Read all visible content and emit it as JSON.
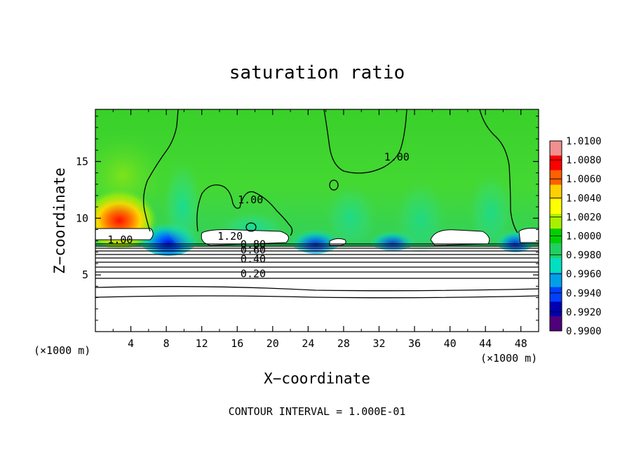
{
  "chart_data": {
    "type": "heatmap",
    "title": "saturation ratio",
    "xlabel": "X−coordinate",
    "ylabel": "Z−coordinate",
    "x_unit": "(×1000 m)",
    "x_unit_right": "(×1000 m)",
    "xlim": [
      0,
      50
    ],
    "ylim": [
      0,
      19.6
    ],
    "xticks": [
      4,
      8,
      12,
      16,
      20,
      24,
      28,
      32,
      36,
      40,
      44,
      48
    ],
    "xtick_labels": [
      "4",
      "8",
      "12",
      "16",
      "20",
      "24",
      "28",
      "32",
      "36",
      "40",
      "44",
      "48"
    ],
    "yticks": [
      5,
      10,
      15
    ],
    "ytick_labels": [
      "5",
      "10",
      "15"
    ],
    "colorbar": {
      "min": 0.99,
      "max": 1.01,
      "labels": [
        "1.0100",
        "1.0080",
        "1.0060",
        "1.0040",
        "1.0020",
        "1.0000",
        "0.9980",
        "0.9960",
        "0.9940",
        "0.9920",
        "0.9900"
      ],
      "colors": [
        "#f09090",
        "#ff0000",
        "#ff6000",
        "#ffd000",
        "#ffff00",
        "#a8f000",
        "#00d000",
        "#20d060",
        "#00e0c0",
        "#00a0e8",
        "#0040ff",
        "#0000b0",
        "#50007a"
      ]
    },
    "contour_labels": [
      {
        "text": "1.00",
        "x": 34,
        "y": 15.1
      },
      {
        "text": "1.00",
        "x": 17.5,
        "y": 11.3
      },
      {
        "text": "1.00",
        "x": 2.8,
        "y": 7.8
      },
      {
        "text": "1.20",
        "x": 15.2,
        "y": 8.1
      },
      {
        "text": "0.80",
        "x": 17.8,
        "y": 7.4
      },
      {
        "text": "0.60",
        "x": 17.8,
        "y": 6.9
      },
      {
        "text": "0.40",
        "x": 17.8,
        "y": 6.1
      },
      {
        "text": "0.20",
        "x": 17.8,
        "y": 4.8
      }
    ],
    "contour_interval": "CONTOUR INTERVAL = 1.000E-01"
  }
}
